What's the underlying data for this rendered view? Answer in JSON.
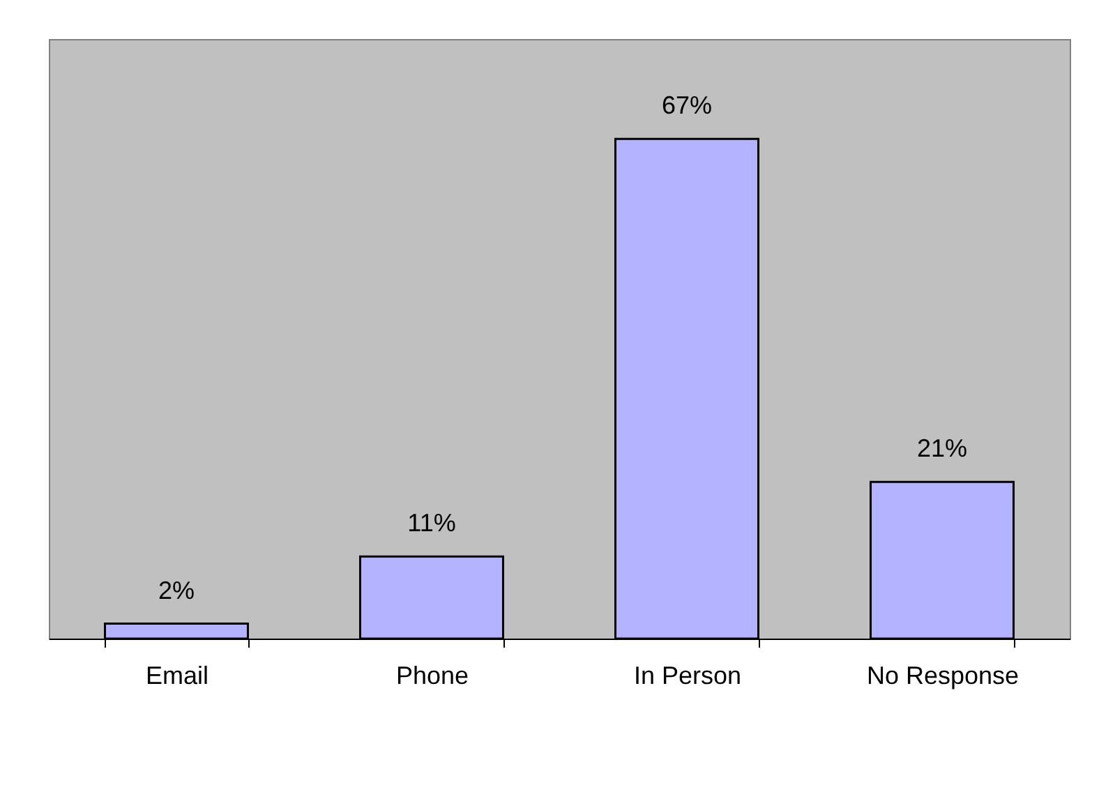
{
  "chart_data": {
    "type": "bar",
    "categories": [
      "Email",
      "Phone",
      "In Person",
      "No Response"
    ],
    "values": [
      2,
      11,
      67,
      21
    ],
    "value_labels": [
      "2%",
      "11%",
      "67%",
      "21%"
    ],
    "color": "#b3b3ff",
    "grid": false
  }
}
